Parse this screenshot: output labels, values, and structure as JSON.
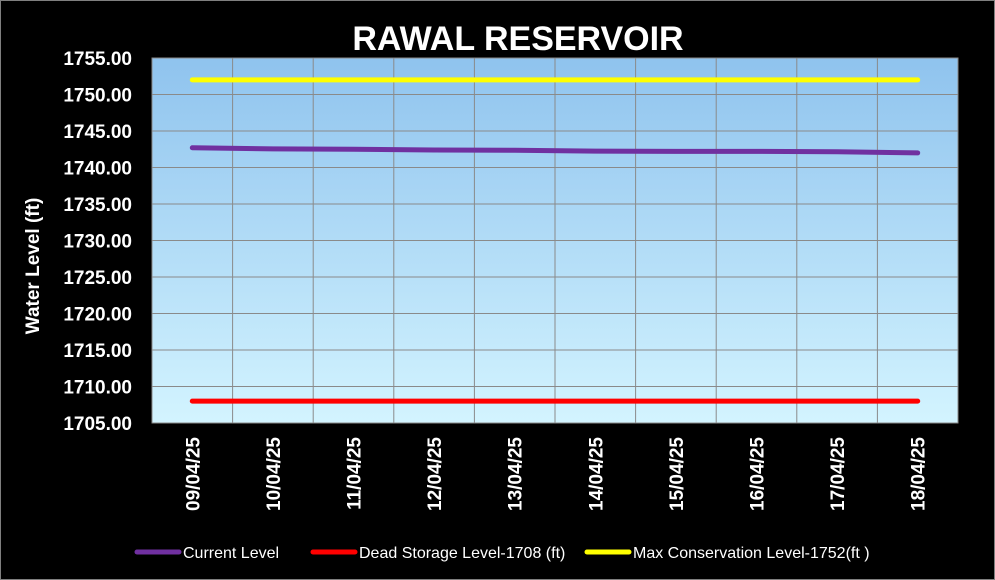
{
  "chart_data": {
    "type": "line",
    "title": "RAWAL RESERVOIR",
    "xlabel": "",
    "ylabel": "Water Level (ft)",
    "ylim": [
      1705,
      1755
    ],
    "yticks": [
      "1705.00",
      "1710.00",
      "1715.00",
      "1720.00",
      "1725.00",
      "1730.00",
      "1735.00",
      "1740.00",
      "1745.00",
      "1750.00",
      "1755.00"
    ],
    "categories": [
      "09/04/25",
      "10/04/25",
      "11/04/25",
      "12/04/25",
      "13/04/25",
      "14/04/25",
      "15/04/25",
      "16/04/25",
      "17/04/25",
      "18/04/25"
    ],
    "grid": true,
    "legend_position": "bottom",
    "series": [
      {
        "name": "Current Level",
        "color": "#7030a0",
        "values": [
          1742.7,
          1742.55,
          1742.5,
          1742.4,
          1742.35,
          1742.25,
          1742.2,
          1742.2,
          1742.15,
          1742.0
        ]
      },
      {
        "name": "Dead Storage Level-1708 (ft)",
        "color": "#ff0000",
        "values": [
          1708,
          1708,
          1708,
          1708,
          1708,
          1708,
          1708,
          1708,
          1708,
          1708
        ]
      },
      {
        "name": "Max Conservation Level-1752(ft )",
        "color": "#ffff00",
        "values": [
          1752,
          1752,
          1752,
          1752,
          1752,
          1752,
          1752,
          1752,
          1752,
          1752
        ]
      }
    ]
  }
}
